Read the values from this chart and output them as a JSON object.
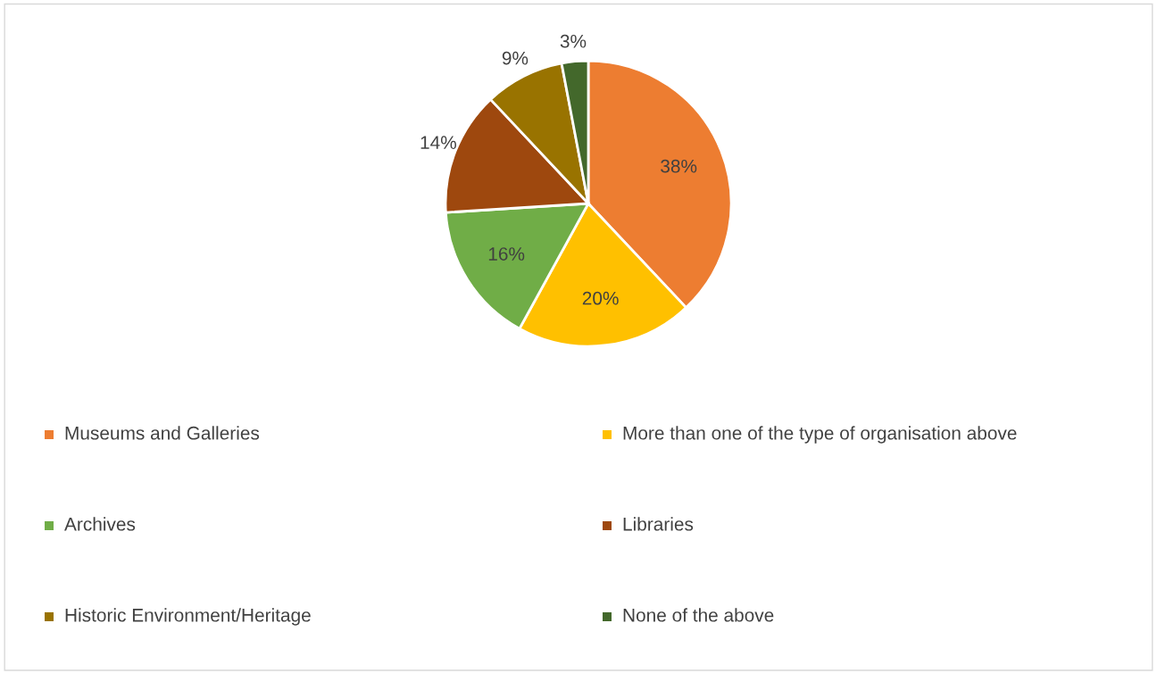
{
  "chart_data": {
    "type": "pie",
    "categories": [
      "Museums and Galleries",
      "More than one of the type of organisation above",
      "Archives",
      "Libraries",
      "Historic Environment/Heritage",
      "None of the above"
    ],
    "values": [
      38,
      20,
      16,
      14,
      9,
      3
    ],
    "colors": [
      "#ed7d31",
      "#ffc000",
      "#70ad47",
      "#9e480e",
      "#997300",
      "#43682b"
    ],
    "value_labels": [
      "38%",
      "20%",
      "16%",
      "14%",
      "9%",
      "3%"
    ],
    "legend": "bottom"
  }
}
